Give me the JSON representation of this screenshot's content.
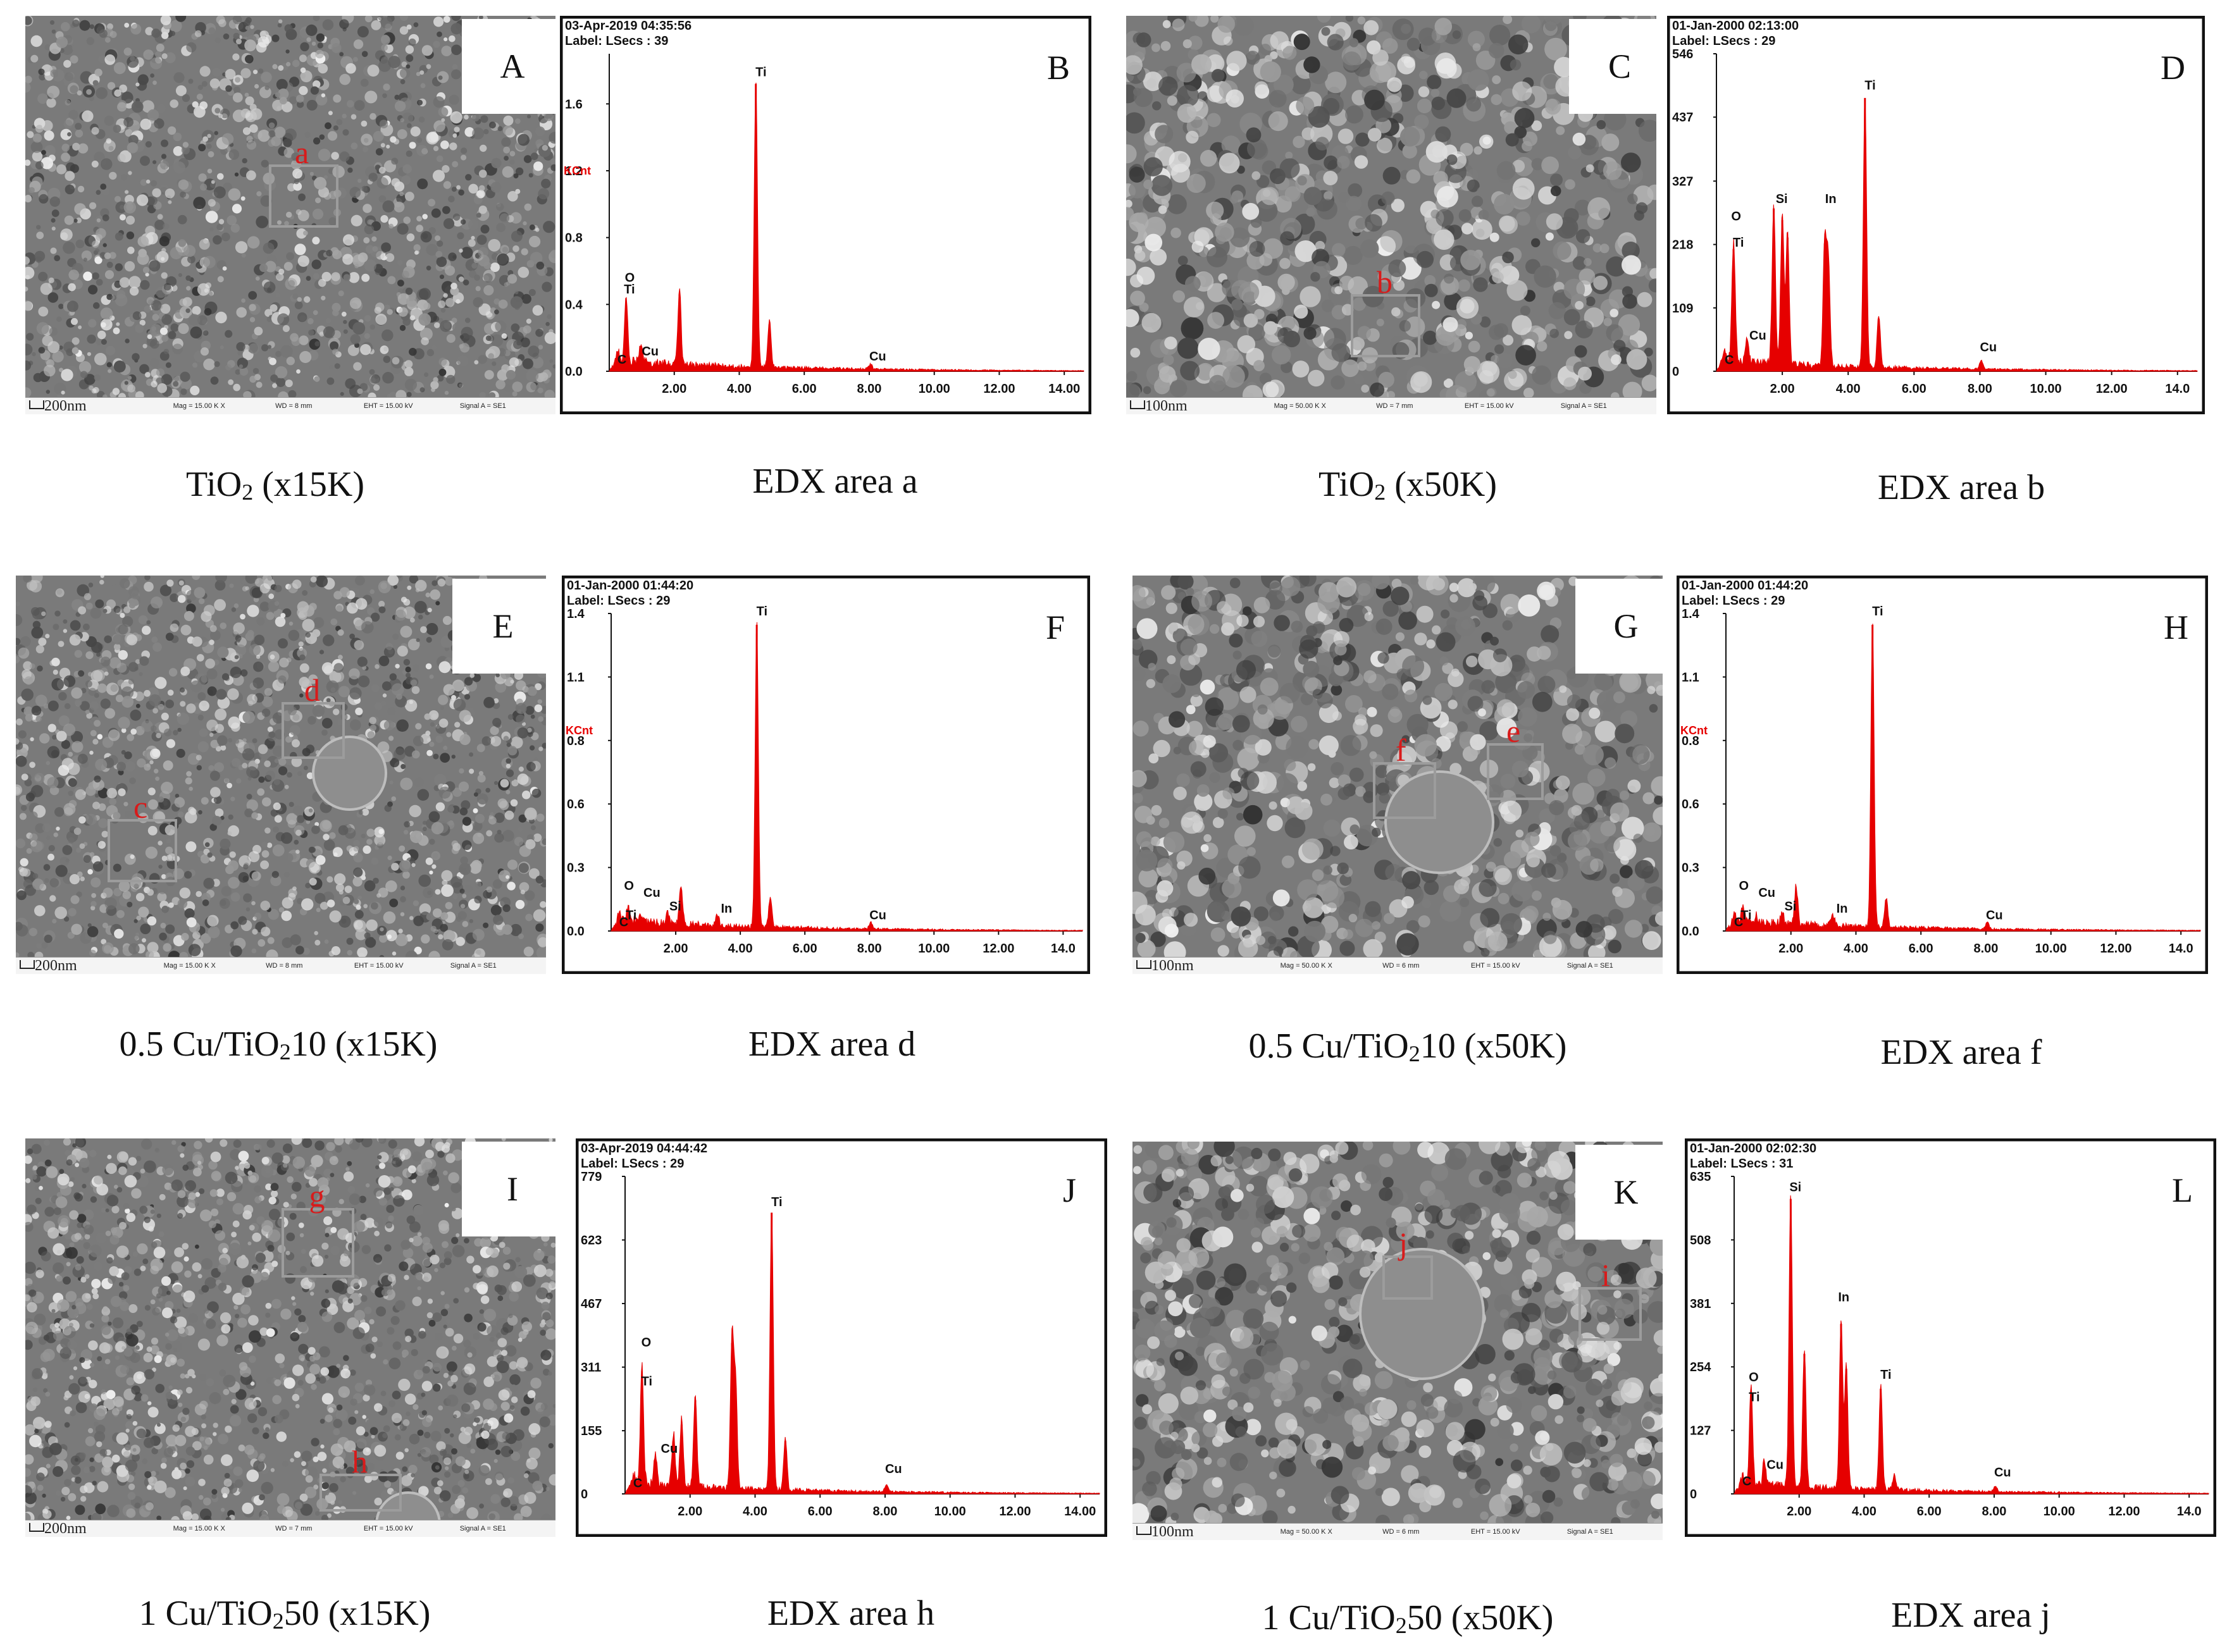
{
  "colors": {
    "spectrum": "#e60000",
    "roi": "#9c9c9c",
    "roi_label": "#d81b1b",
    "frame": "#111111"
  },
  "sem_panels": [
    {
      "letter": "A",
      "scale": "200nm",
      "meta": [
        "Mag = 15.00 K X",
        "WD = 8 mm",
        "EHT = 15.00 kV",
        "Signal A = SE1"
      ],
      "rois": [
        {
          "label": "a"
        }
      ],
      "particle": false
    },
    {
      "letter": "C",
      "scale": "100nm",
      "meta": [
        "Mag = 50.00 K X",
        "WD = 7 mm",
        "EHT = 15.00 kV",
        "Signal A = SE1"
      ],
      "rois": [
        {
          "label": "b"
        }
      ],
      "particle": false
    },
    {
      "letter": "E",
      "scale": "200nm",
      "meta": [
        "Mag = 15.00 K X",
        "WD = 8 mm",
        "EHT = 15.00 kV",
        "Signal A = SE1"
      ],
      "rois": [
        {
          "label": "d"
        },
        {
          "label": "c"
        }
      ],
      "particle": true
    },
    {
      "letter": "G",
      "scale": "100nm",
      "meta": [
        "Mag = 50.00 K X",
        "WD = 6 mm",
        "EHT = 15.00 kV",
        "Signal A = SE1"
      ],
      "rois": [
        {
          "label": "f"
        },
        {
          "label": "e"
        }
      ],
      "particle": true
    },
    {
      "letter": "I",
      "scale": "200nm",
      "meta": [
        "Mag = 15.00 K X",
        "WD = 7 mm",
        "EHT = 15.00 kV",
        "Signal A = SE1"
      ],
      "rois": [
        {
          "label": "g"
        },
        {
          "label": "h"
        }
      ],
      "particle": true
    },
    {
      "letter": "K",
      "scale": "100nm",
      "meta": [
        "Mag = 50.00 K X",
        "WD = 6 mm",
        "EHT = 15.00 kV",
        "Signal A = SE1"
      ],
      "rois": [
        {
          "label": "j"
        },
        {
          "label": "i"
        }
      ],
      "particle": true
    }
  ],
  "captions": [
    {
      "pre": "TiO",
      "sub": "2",
      "post": " (x15K)"
    },
    {
      "pre": "EDX area  a",
      "sub": "",
      "post": ""
    },
    {
      "pre": "TiO",
      "sub": "2",
      "post": " (x50K)"
    },
    {
      "pre": "EDX area b",
      "sub": "",
      "post": ""
    },
    {
      "pre": "0.5 Cu/TiO",
      "sub": "2",
      "post": "10 (x15K)"
    },
    {
      "pre": "EDX area d",
      "sub": "",
      "post": ""
    },
    {
      "pre": "0.5 Cu/TiO",
      "sub": "2",
      "post": "10 (x50K)"
    },
    {
      "pre": "EDX area f",
      "sub": "",
      "post": ""
    },
    {
      "pre": "1 Cu/TiO",
      "sub": "2",
      "post": "50 (x15K)"
    },
    {
      "pre": "EDX area h",
      "sub": "",
      "post": ""
    },
    {
      "pre": "1 Cu/TiO",
      "sub": "2",
      "post": "50 (x50K)"
    },
    {
      "pre": "EDX area j",
      "sub": "",
      "post": ""
    }
  ],
  "chart_data": [
    {
      "panel": "B",
      "type": "area",
      "title": "EDX area a",
      "header1": "03-Apr-2019 04:35:56",
      "header2": "Label:   LSecs : 39",
      "ylabel": "KCnt",
      "xlim": [
        0,
        14.6
      ],
      "ylim": [
        0,
        1.9
      ],
      "yticks": [
        "0.0",
        "0.4",
        "0.8",
        "1.2",
        "1.6"
      ],
      "ytick_values": [
        0,
        0.4,
        0.8,
        1.2,
        1.6
      ],
      "xticks": [
        "2.00",
        "4.00",
        "6.00",
        "8.00",
        "10.00",
        "12.00",
        "14.00"
      ],
      "xtick_values": [
        2,
        4,
        6,
        8,
        10,
        12,
        14
      ],
      "peaks": [
        [
          0.28,
          0.05
        ],
        [
          0.52,
          0.38
        ],
        [
          0.93,
          0.06
        ],
        [
          1.0,
          0.05
        ],
        [
          2.16,
          0.46
        ],
        [
          4.51,
          1.72
        ],
        [
          4.93,
          0.28
        ],
        [
          8.04,
          0.03
        ]
      ],
      "labels": [
        {
          "t": "C",
          "x": 0.25,
          "y": 0.03
        },
        {
          "t": "O",
          "x": 0.48,
          "y": 0.52
        },
        {
          "t": "Ti",
          "x": 0.45,
          "y": 0.45
        },
        {
          "t": "Cu",
          "x": 1.0,
          "y": 0.08
        },
        {
          "t": "Ti",
          "x": 4.5,
          "y": 1.75
        },
        {
          "t": "Cu",
          "x": 8.0,
          "y": 0.05
        }
      ]
    },
    {
      "panel": "D",
      "type": "area",
      "title": "EDX area b",
      "header1": "01-Jan-2000 02:13:00",
      "header2": "Label:   LSecs : 29",
      "ylabel": "",
      "xlim": [
        0,
        14.6
      ],
      "ylim": [
        0,
        546
      ],
      "yticks": [
        "0",
        "109",
        "218",
        "327",
        "437",
        "546"
      ],
      "ytick_values": [
        0,
        109,
        218,
        327,
        437,
        546
      ],
      "xticks": [
        "2.00",
        "4.00",
        "6.00",
        "8.00",
        "10.00",
        "12.00",
        "14.0"
      ],
      "xtick_values": [
        2,
        4,
        6,
        8,
        10,
        12,
        14
      ],
      "peaks": [
        [
          0.28,
          20
        ],
        [
          0.52,
          210
        ],
        [
          0.93,
          40
        ],
        [
          1.74,
          280
        ],
        [
          2.0,
          260
        ],
        [
          2.16,
          230
        ],
        [
          3.29,
          220
        ],
        [
          3.4,
          180
        ],
        [
          4.51,
          470
        ],
        [
          4.93,
          90
        ],
        [
          8.04,
          14
        ]
      ],
      "labels": [
        {
          "t": "C",
          "x": 0.25,
          "y": 8
        },
        {
          "t": "O",
          "x": 0.45,
          "y": 255
        },
        {
          "t": "Ti",
          "x": 0.5,
          "y": 210
        },
        {
          "t": "Cu",
          "x": 1.0,
          "y": 50
        },
        {
          "t": "Si",
          "x": 1.8,
          "y": 285
        },
        {
          "t": "In",
          "x": 3.3,
          "y": 285
        },
        {
          "t": "Ti",
          "x": 4.5,
          "y": 480
        },
        {
          "t": "Cu",
          "x": 8.0,
          "y": 30
        }
      ]
    },
    {
      "panel": "F",
      "type": "area",
      "title": "EDX area d",
      "header1": "01-Jan-2000 01:44:20",
      "header2": "Label:   LSecs : 29",
      "ylabel": "KCnt",
      "xlim": [
        0,
        14.6
      ],
      "ylim": [
        0,
        1.4
      ],
      "yticks": [
        "0.0",
        "0.3",
        "0.6",
        "0.8",
        "1.1",
        "1.4"
      ],
      "ytick_values": [
        0,
        0.28,
        0.56,
        0.84,
        1.12,
        1.4
      ],
      "xticks": [
        "2.00",
        "4.00",
        "6.00",
        "8.00",
        "10.00",
        "12.00",
        "14.0"
      ],
      "xtick_values": [
        2,
        4,
        6,
        8,
        10,
        12,
        14
      ],
      "peaks": [
        [
          0.28,
          0.03
        ],
        [
          0.52,
          0.06
        ],
        [
          0.93,
          0.03
        ],
        [
          1.74,
          0.05
        ],
        [
          2.16,
          0.17
        ],
        [
          3.29,
          0.05
        ],
        [
          4.51,
          1.35
        ],
        [
          4.93,
          0.13
        ],
        [
          8.04,
          0.03
        ]
      ],
      "labels": [
        {
          "t": "C",
          "x": 0.25,
          "y": 0.01
        },
        {
          "t": "O",
          "x": 0.4,
          "y": 0.17
        },
        {
          "t": "Ti",
          "x": 0.45,
          "y": 0.04
        },
        {
          "t": "Cu",
          "x": 1.0,
          "y": 0.14
        },
        {
          "t": "Si",
          "x": 1.8,
          "y": 0.08
        },
        {
          "t": "In",
          "x": 3.4,
          "y": 0.07
        },
        {
          "t": "Ti",
          "x": 4.5,
          "y": 1.38
        },
        {
          "t": "Cu",
          "x": 8.0,
          "y": 0.04
        }
      ]
    },
    {
      "panel": "H",
      "type": "area",
      "title": "EDX area f",
      "header1": "01-Jan-2000 01:44:20",
      "header2": "Label:   LSecs : 29",
      "ylabel": "KCnt",
      "xlim": [
        0,
        14.6
      ],
      "ylim": [
        0,
        1.4
      ],
      "yticks": [
        "0.0",
        "0.3",
        "0.6",
        "0.8",
        "1.1",
        "1.4"
      ],
      "ytick_values": [
        0,
        0.28,
        0.56,
        0.84,
        1.12,
        1.4
      ],
      "xticks": [
        "2.00",
        "4.00",
        "6.00",
        "8.00",
        "10.00",
        "12.00",
        "14.0"
      ],
      "xtick_values": [
        2,
        4,
        6,
        8,
        10,
        12,
        14
      ],
      "peaks": [
        [
          0.28,
          0.03
        ],
        [
          0.52,
          0.06
        ],
        [
          0.93,
          0.03
        ],
        [
          1.74,
          0.05
        ],
        [
          2.16,
          0.17
        ],
        [
          3.29,
          0.05
        ],
        [
          4.51,
          1.35
        ],
        [
          4.93,
          0.13
        ],
        [
          8.04,
          0.03
        ]
      ],
      "labels": [
        {
          "t": "C",
          "x": 0.25,
          "y": 0.01
        },
        {
          "t": "O",
          "x": 0.4,
          "y": 0.17
        },
        {
          "t": "Ti",
          "x": 0.45,
          "y": 0.04
        },
        {
          "t": "Cu",
          "x": 1.0,
          "y": 0.14
        },
        {
          "t": "Si",
          "x": 1.8,
          "y": 0.08
        },
        {
          "t": "In",
          "x": 3.4,
          "y": 0.07
        },
        {
          "t": "Ti",
          "x": 4.5,
          "y": 1.38
        },
        {
          "t": "Cu",
          "x": 8.0,
          "y": 0.04
        }
      ]
    },
    {
      "panel": "J",
      "type": "area",
      "title": "EDX area h",
      "header1": "03-Apr-2019 04:44:42",
      "header2": "Label:   LSecs : 29",
      "ylabel": "",
      "xlim": [
        0,
        14.6
      ],
      "ylim": [
        0,
        779
      ],
      "yticks": [
        "0",
        "155",
        "311",
        "467",
        "623",
        "779"
      ],
      "ytick_values": [
        0,
        155,
        311,
        467,
        623,
        779
      ],
      "xticks": [
        "2.00",
        "4.00",
        "6.00",
        "8.00",
        "10.00",
        "12.00",
        "14.00"
      ],
      "xtick_values": [
        2,
        4,
        6,
        8,
        10,
        12,
        14
      ],
      "peaks": [
        [
          0.28,
          20
        ],
        [
          0.52,
          290
        ],
        [
          0.93,
          80
        ],
        [
          1.49,
          130
        ],
        [
          1.74,
          170
        ],
        [
          2.16,
          230
        ],
        [
          3.29,
          370
        ],
        [
          3.4,
          260
        ],
        [
          4.51,
          690
        ],
        [
          4.93,
          130
        ],
        [
          8.04,
          18
        ]
      ],
      "labels": [
        {
          "t": "C",
          "x": 0.25,
          "y": 10
        },
        {
          "t": "O",
          "x": 0.5,
          "y": 355
        },
        {
          "t": "Ti",
          "x": 0.5,
          "y": 260
        },
        {
          "t": "Cu",
          "x": 1.1,
          "y": 95
        },
        {
          "t": "Ti",
          "x": 4.5,
          "y": 700
        },
        {
          "t": "Cu",
          "x": 8.0,
          "y": 45
        }
      ]
    },
    {
      "panel": "L",
      "type": "area",
      "title": "EDX area j",
      "header1": "01-Jan-2000 02:02:30",
      "header2": "Label:   LSecs : 31",
      "ylabel": "",
      "xlim": [
        0,
        14.6
      ],
      "ylim": [
        0,
        635
      ],
      "yticks": [
        "0",
        "127",
        "254",
        "381",
        "508",
        "635"
      ],
      "ytick_values": [
        0,
        127,
        254,
        381,
        508,
        635
      ],
      "xticks": [
        "2.00",
        "4.00",
        "6.00",
        "8.00",
        "10.00",
        "12.00",
        "14.0"
      ],
      "xtick_values": [
        2,
        4,
        6,
        8,
        10,
        12,
        14
      ],
      "peaks": [
        [
          0.28,
          15
        ],
        [
          0.52,
          190
        ],
        [
          0.93,
          50
        ],
        [
          1.74,
          590
        ],
        [
          2.16,
          280
        ],
        [
          3.29,
          340
        ],
        [
          3.45,
          250
        ],
        [
          4.51,
          210
        ],
        [
          4.93,
          30
        ],
        [
          8.04,
          12
        ]
      ],
      "labels": [
        {
          "t": "C",
          "x": 0.25,
          "y": 12
        },
        {
          "t": "O",
          "x": 0.45,
          "y": 220
        },
        {
          "t": "Ti",
          "x": 0.45,
          "y": 180
        },
        {
          "t": "Cu",
          "x": 1.0,
          "y": 45
        },
        {
          "t": "Si",
          "x": 1.7,
          "y": 600
        },
        {
          "t": "In",
          "x": 3.2,
          "y": 380
        },
        {
          "t": "Ti",
          "x": 4.5,
          "y": 225
        },
        {
          "t": "Cu",
          "x": 8.0,
          "y": 30
        }
      ]
    }
  ]
}
